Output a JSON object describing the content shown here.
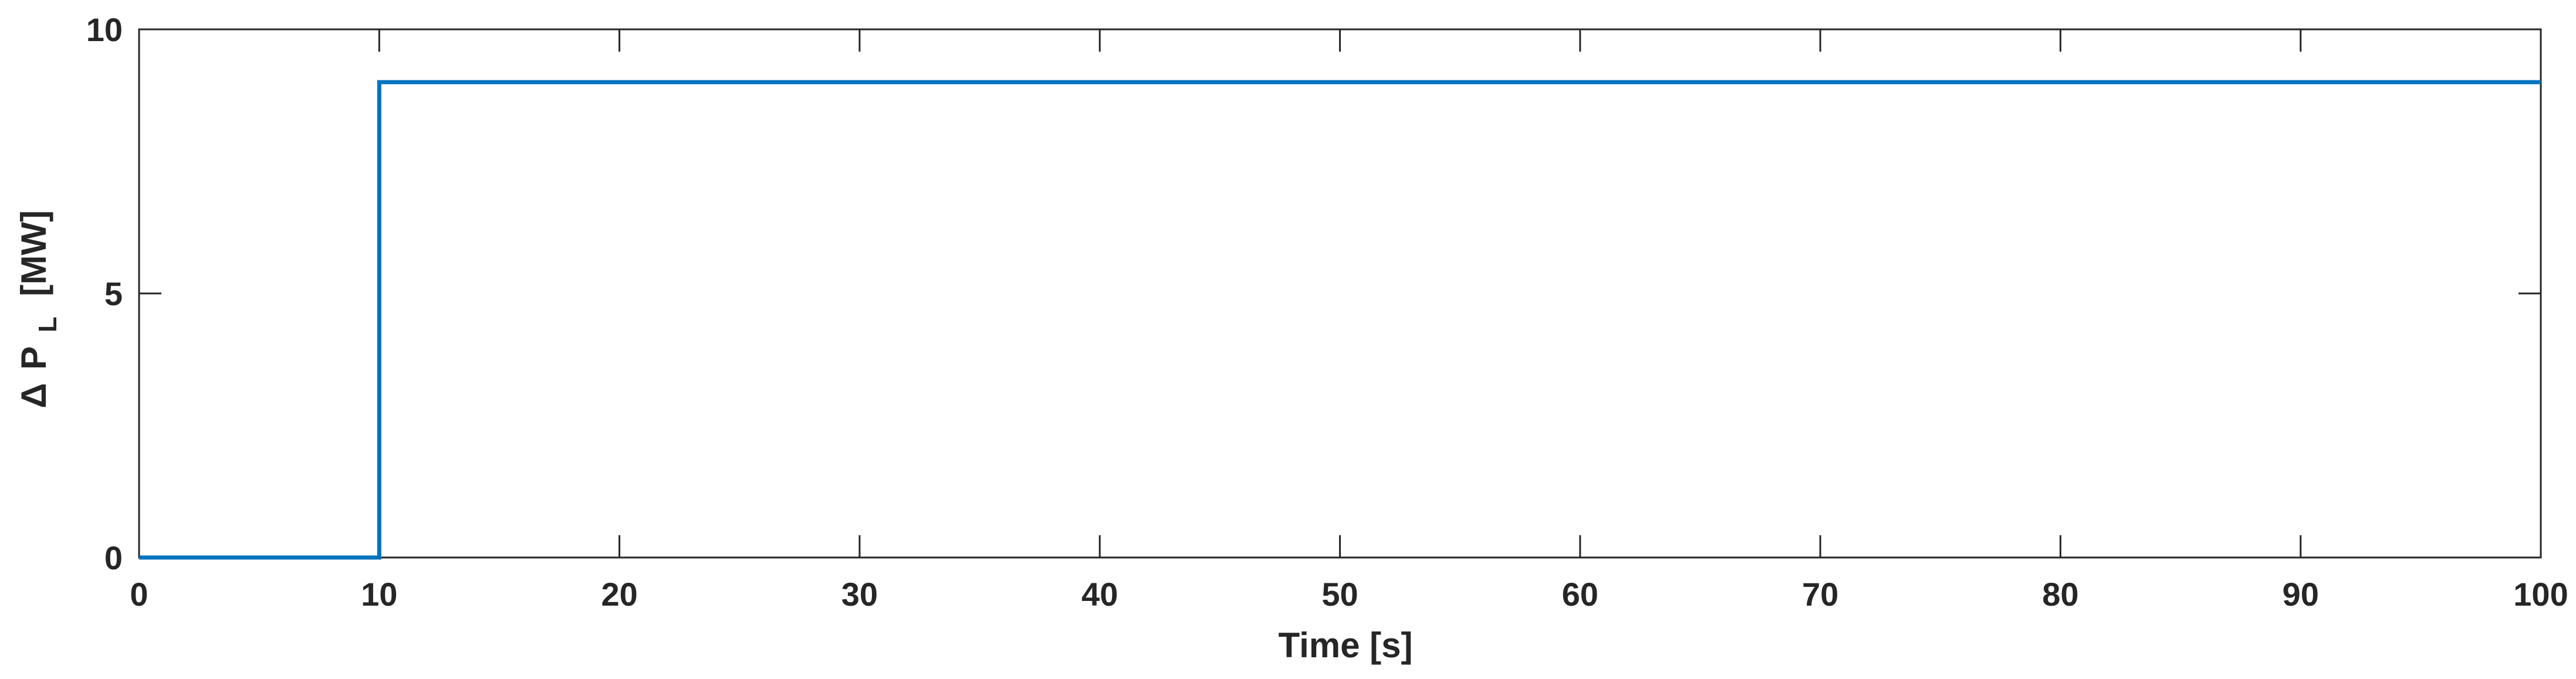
{
  "chart_data": {
    "type": "line",
    "title": "",
    "xlabel": "Time [s]",
    "ylabel": {
      "delta": "Δ",
      "symbol": "P",
      "subscript": "L",
      "unit": "[MW]"
    },
    "xlim": [
      0,
      100
    ],
    "ylim": [
      0,
      10
    ],
    "xticks": [
      0,
      10,
      20,
      30,
      40,
      50,
      60,
      70,
      80,
      90,
      100
    ],
    "yticks": [
      0,
      5,
      10
    ],
    "xtick_labels": [
      "0",
      "10",
      "20",
      "30",
      "40",
      "50",
      "60",
      "70",
      "80",
      "90",
      "100"
    ],
    "ytick_labels": [
      "0",
      "5",
      "10"
    ],
    "grid": false,
    "series": [
      {
        "color": "#0072BD",
        "x": [
          0,
          10,
          10,
          100
        ],
        "y": [
          0,
          0,
          9,
          9
        ]
      }
    ]
  }
}
